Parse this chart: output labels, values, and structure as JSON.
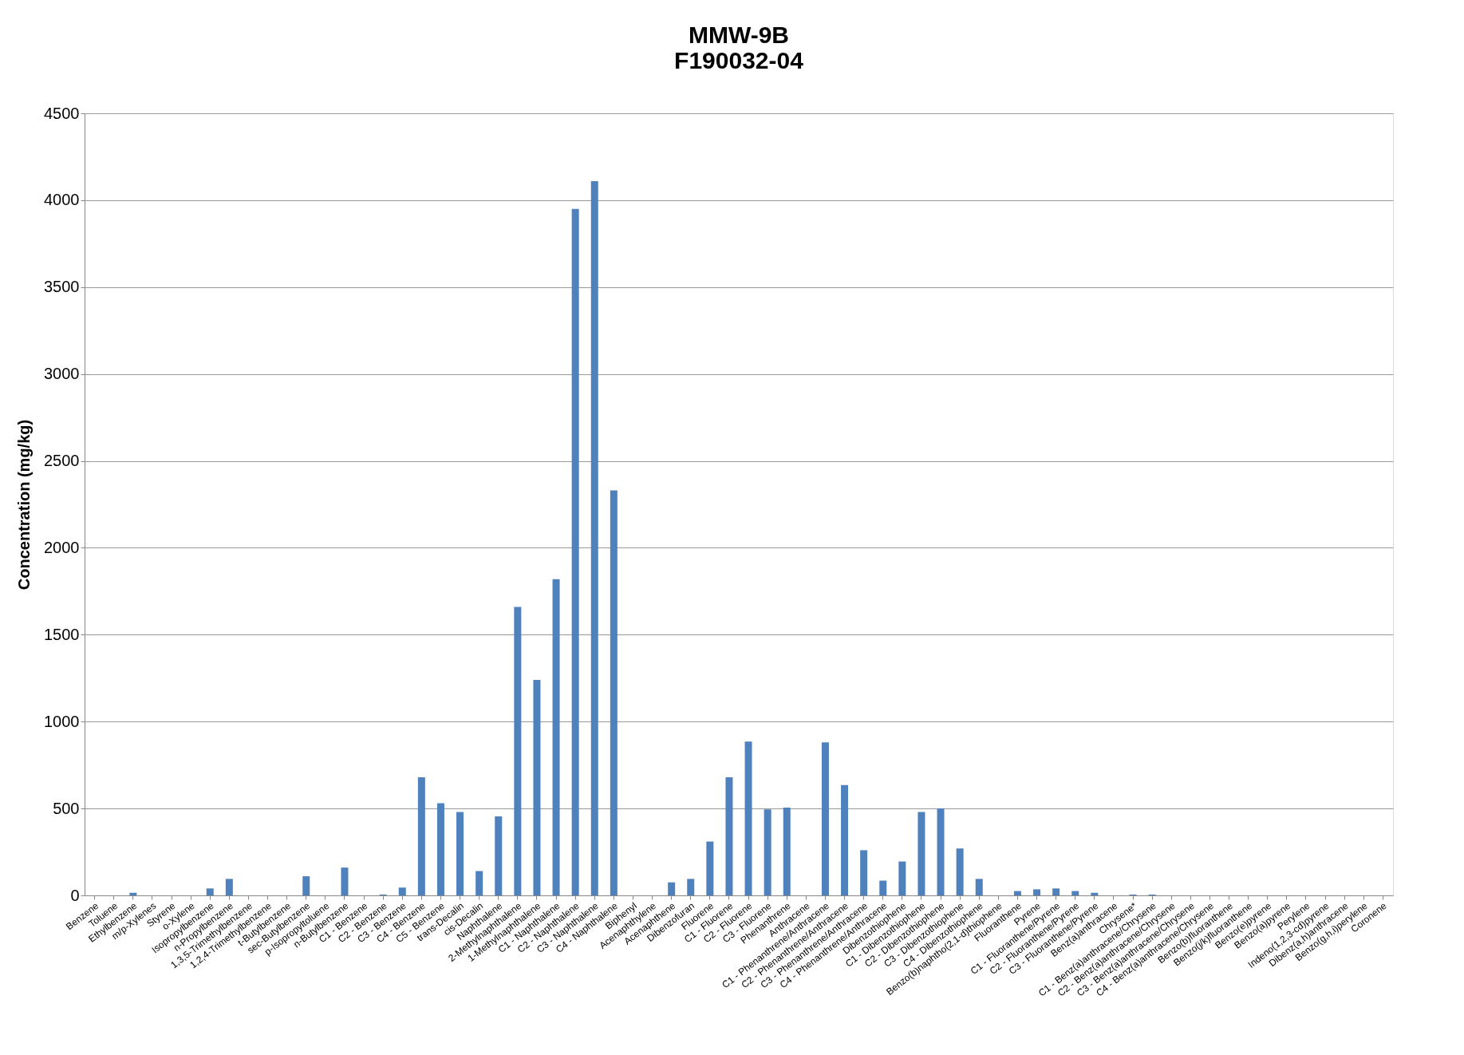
{
  "chart_data": {
    "type": "bar",
    "title": [
      "MMW-9B",
      "F190032-04"
    ],
    "ylabel": "Concentration (mg/kg)",
    "categories": [
      "Benzene",
      "Toluene",
      "Ethylbenzene",
      "m/p-Xylenes",
      "Styrene",
      "o-Xylene",
      "Isopropylbenzene",
      "n-Propylbenzene",
      "1,3,5-Trimethylbenzene",
      "1,2,4-Trimethylbenzene",
      "t-Butylbenzene",
      "sec-Butylbenzene",
      "p-Isopropyltoluene",
      "n-Butylbenzene",
      "C1 - Benzene",
      "C2 - Benzene",
      "C3 - Benzene",
      "C4 - Benzene",
      "C5 - Benzene",
      "trans-Decalin",
      "cis-Decalin",
      "Naphthalene",
      "2-Methylnaphthalene",
      "1-Methylnaphthalene",
      "C1 - Naphthalene",
      "C2 - Naphthalene",
      "C3 - Naphthalene",
      "C4 - Naphthalene",
      "Biphenyl",
      "Acenaphthylene",
      "Acenaphthene",
      "Dibenzofuran",
      "Fluorene",
      "C1 - Fluorene",
      "C2 - Fluorene",
      "C3 - Fluorene",
      "Phenanthrene",
      "Anthracene",
      "C1 - Phenanthrene/Anthracene",
      "C2 - Phenanthrene/Anthracene",
      "C3 - Phenanthrene/Anthracene",
      "C4 - Phenanthrene/Anthracene",
      "Dibenzothiophene",
      "C1 - Dibenzothiophene",
      "C2 - Dibenzothiophene",
      "C3 - Dibenzothiophene",
      "C4 - Dibenzothiophene",
      "Benzo(b)naphtho(2,1-d)thiophene",
      "Fluoranthene",
      "Pyrene",
      "C1 - Fluoranthene/Pyrene",
      "C2 - Fluoranthene/Pyrene",
      "C3 - Fluoranthene/Pyrene",
      "Benz(a)anthracene",
      "Chrysene*",
      "C1 - Benz(a)anthracene/Chrysene",
      "C2 - Benz(a)anthracene/Chrysene",
      "C3 - Benz(a)anthracene/Chrysene",
      "C4 - Benz(a)anthracene/Chrysene",
      "Benzo(b)fluoranthene",
      "Benzo(j/k)fluoranthene",
      "Benzo(e)pyrene",
      "Benzo(a)pyrene",
      "Perylene",
      "Indeno(1,2,3-cd)pyrene",
      "Dibenz(a,h)anthracene",
      "Benzo(g,h,i)perylene",
      "Coronene"
    ],
    "values": [
      0,
      0,
      15,
      0,
      0,
      0,
      40,
      95,
      0,
      0,
      0,
      110,
      0,
      160,
      0,
      5,
      45,
      680,
      530,
      480,
      140,
      455,
      1660,
      1240,
      1820,
      3950,
      4110,
      2330,
      0,
      0,
      75,
      95,
      310,
      680,
      885,
      495,
      505,
      0,
      880,
      635,
      260,
      85,
      195,
      480,
      500,
      270,
      95,
      0,
      25,
      35,
      40,
      25,
      15,
      0,
      5,
      5,
      0,
      0,
      0,
      0,
      0,
      0,
      0,
      0,
      0,
      0,
      0,
      0
    ],
    "color": "#4f81bd",
    "ylim": [
      0,
      4500
    ],
    "yticks": [
      0,
      500,
      1000,
      1500,
      2000,
      2500,
      3000,
      3500,
      4000,
      4500
    ],
    "grid": "y"
  }
}
